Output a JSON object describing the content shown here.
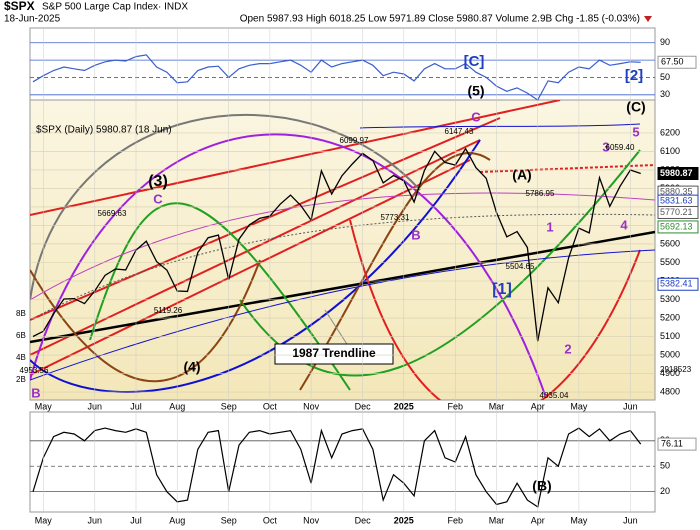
{
  "header": {
    "symbol": "$SPX",
    "name": "S&P 500 Large Cap Index· INDX",
    "date": "18-Jun-2025",
    "quote": "Open 5987.93 High 6018.25 Low 5971.89 Close 5980.87 Volume 2.9B Chg -1.85 (-0.03%)"
  },
  "chart_data": [
    {
      "type": "line",
      "color": "#3a5fcd",
      "values": [
        45,
        52,
        58,
        62,
        60,
        58,
        64,
        68,
        70,
        69,
        74,
        76,
        62,
        56,
        44,
        45,
        58,
        62,
        63,
        50,
        60,
        64,
        66,
        66,
        68,
        70,
        64,
        56,
        70,
        62,
        66,
        68,
        70,
        64,
        52,
        56,
        54,
        46,
        60,
        66,
        60,
        60,
        66,
        56,
        50,
        40,
        34,
        38,
        32,
        24,
        46,
        44,
        56,
        62,
        60,
        70,
        64,
        66,
        68,
        67.5
      ],
      "ylim": [
        24,
        107
      ],
      "yticks": [
        90,
        70,
        50,
        30
      ],
      "grid": true,
      "last_value": {
        "value": 67.5,
        "label": "67.50"
      }
    },
    {
      "type": "line",
      "color": "#000000",
      "legend": "$SPX (Daily) 5980.87 (18 Jun)",
      "categories": [
        null,
        "May",
        null,
        null,
        null,
        null,
        "Jun",
        null,
        null,
        null,
        "Jul",
        null,
        null,
        null,
        "Aug",
        null,
        null,
        null,
        null,
        "Sep",
        null,
        null,
        null,
        "Oct",
        null,
        null,
        null,
        "Nov",
        null,
        null,
        null,
        null,
        "Dec",
        null,
        null,
        null,
        "2025",
        null,
        null,
        null,
        null,
        "Feb",
        null,
        null,
        null,
        "Mar",
        null,
        null,
        null,
        "Apr",
        null,
        null,
        null,
        "May",
        null,
        null,
        null,
        null,
        "Jun",
        null
      ],
      "values": [
        5100,
        5128,
        5223,
        5303,
        5305,
        5278,
        5347,
        5431,
        5465,
        5460,
        5567,
        5615,
        5505,
        5459,
        5346,
        5344,
        5554,
        5634,
        5648,
        5408,
        5626,
        5703,
        5738,
        5751,
        5815,
        5864,
        5808,
        5729,
        5995,
        5870,
        5969,
        6032,
        6090,
        6051,
        5930,
        5970,
        5942,
        5827,
        5997,
        6101,
        6041,
        6026,
        6115,
        6013,
        5955,
        5770,
        5639,
        5667,
        5581,
        5074,
        5363,
        5283,
        5525,
        5686,
        5660,
        5958,
        5803,
        5912,
        6000,
        5980.87
      ],
      "ylim": [
        4757,
        6378
      ],
      "yticks": [
        4800,
        4900,
        5000,
        5100,
        5200,
        5300,
        5400,
        5500,
        5600,
        5700,
        5800,
        5900,
        6000,
        6100,
        6200
      ],
      "grid": true,
      "right_labels": [
        {
          "value": 5980.87,
          "color": "#000000"
        },
        {
          "value": 5880.35,
          "color": "#555555"
        },
        {
          "value": 5831.63,
          "color": "#1f3fbf"
        },
        {
          "value": 5770.21,
          "color": "#555555"
        },
        {
          "value": 5692.13,
          "color": "#2e8b2e"
        },
        {
          "value": 5382.41,
          "color": "#1f3fbf"
        }
      ],
      "volume_labels": [
        "8B",
        "6B",
        "4B",
        "2B"
      ],
      "volume_last": "2918523",
      "annotations": [
        {
          "text": "(3)",
          "color": "#000000"
        },
        {
          "text": "C",
          "color": "#9b30c8"
        },
        {
          "text": "(4)",
          "color": "#000000"
        },
        {
          "text": "B",
          "color": "#9b30c8"
        },
        {
          "text": "(5)",
          "color": "#000000"
        },
        {
          "text": "C",
          "color": "#9b30c8"
        },
        {
          "text": "[C]",
          "color": "#1f3fbf"
        },
        {
          "text": "[2]",
          "color": "#1f3fbf"
        },
        {
          "text": "(C)",
          "color": "#000000"
        },
        {
          "text": "5",
          "color": "#9b30c8"
        },
        {
          "text": "3",
          "color": "#9b30c8"
        },
        {
          "text": "(A)",
          "color": "#000000"
        },
        {
          "text": "[1]",
          "color": "#1f3fbf"
        },
        {
          "text": "1",
          "color": "#9b30c8"
        },
        {
          "text": "2",
          "color": "#9b30c8"
        },
        {
          "text": "4",
          "color": "#9b30c8"
        },
        {
          "text": "B",
          "color": "#9b30c8"
        },
        {
          "text": "1987 Trendline",
          "color": "#000000"
        },
        {
          "text": "5669.63",
          "color": "#000000"
        },
        {
          "text": "5119.26",
          "color": "#000000"
        },
        {
          "text": "6099.97",
          "color": "#000000"
        },
        {
          "text": "5773.31",
          "color": "#000000"
        },
        {
          "text": "6147.43",
          "color": "#000000"
        },
        {
          "text": "5786.95",
          "color": "#000000"
        },
        {
          "text": "5504.65",
          "color": "#000000"
        },
        {
          "text": "4835.04",
          "color": "#000000"
        },
        {
          "text": "6059.40",
          "color": "#000000"
        },
        {
          "text": "4953.56",
          "color": "#000000"
        }
      ]
    },
    {
      "type": "line",
      "color": "#000000",
      "signal_color": "#e03030",
      "values": [
        20,
        60,
        85,
        90,
        88,
        80,
        92,
        95,
        92,
        90,
        94,
        90,
        40,
        20,
        8,
        10,
        70,
        90,
        92,
        20,
        75,
        90,
        92,
        88,
        90,
        92,
        70,
        30,
        92,
        60,
        88,
        92,
        94,
        70,
        10,
        40,
        30,
        15,
        80,
        92,
        60,
        55,
        85,
        40,
        20,
        5,
        8,
        30,
        10,
        2,
        60,
        50,
        88,
        95,
        85,
        94,
        80,
        88,
        92,
        76.11
      ],
      "ylim": [
        -4,
        114
      ],
      "yticks": [
        80,
        50,
        20
      ],
      "grid": true,
      "annotation": "(B)",
      "last_value": {
        "value": 76.11,
        "label": "76.11"
      }
    }
  ]
}
